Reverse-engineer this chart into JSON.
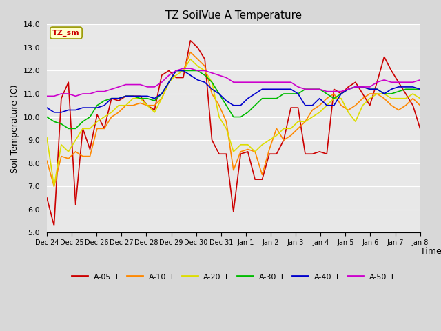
{
  "title": "TZ SoilVue A Temperature",
  "xlabel": "Time",
  "ylabel": "Soil Temperature (C)",
  "ylim": [
    5.0,
    14.0
  ],
  "yticks": [
    5.0,
    6.0,
    7.0,
    8.0,
    9.0,
    10.0,
    11.0,
    12.0,
    13.0,
    14.0
  ],
  "xtick_labels": [
    "Dec 24",
    "Dec 25",
    "Dec 26",
    "Dec 27",
    "Dec 28",
    "Dec 29",
    "Dec 30",
    "Dec 31",
    "Jan 1",
    "Jan 2",
    "Jan 3",
    "Jan 4",
    "Jan 5",
    "Jan 6",
    "Jan 7",
    "Jan 8"
  ],
  "bg_color": "#d8d8d8",
  "plot_bg_color": "#e8e8e8",
  "grid_color": "#ffffff",
  "series_colors": {
    "A-05_T": "#cc0000",
    "A-10_T": "#ff8800",
    "A-20_T": "#dddd00",
    "A-30_T": "#00bb00",
    "A-40_T": "#0000cc",
    "A-50_T": "#cc00cc"
  },
  "annotation_text": "TZ_sm",
  "annotation_color": "#cc0000",
  "annotation_bg": "#ffffcc",
  "annotation_border": "#999900",
  "line_width": 1.2,
  "A05_T": [
    6.5,
    5.3,
    10.8,
    11.5,
    6.2,
    9.5,
    8.6,
    10.1,
    9.5,
    10.8,
    10.7,
    10.9,
    10.9,
    10.9,
    10.5,
    10.3,
    11.8,
    12.0,
    11.7,
    11.7,
    13.3,
    13.0,
    12.5,
    9.0,
    8.4,
    8.4,
    5.9,
    8.4,
    8.5,
    7.3,
    7.3,
    8.4,
    8.4,
    9.0,
    10.4,
    10.4,
    8.4,
    8.4,
    8.5,
    8.4,
    11.2,
    11.0,
    11.3,
    11.5,
    11.0,
    10.5,
    11.5,
    12.6,
    12.0,
    11.5,
    11.0,
    10.5,
    9.5
  ],
  "A10_T": [
    8.1,
    7.0,
    8.3,
    8.2,
    8.5,
    8.3,
    8.3,
    9.5,
    9.5,
    10.0,
    10.2,
    10.5,
    10.5,
    10.6,
    10.5,
    10.5,
    10.8,
    11.5,
    12.0,
    12.0,
    12.8,
    12.5,
    12.2,
    11.0,
    10.5,
    9.8,
    7.7,
    8.5,
    8.6,
    8.5,
    7.5,
    8.6,
    9.5,
    9.0,
    9.2,
    9.5,
    9.8,
    10.3,
    10.5,
    10.8,
    11.0,
    10.5,
    10.3,
    10.5,
    10.8,
    11.0,
    11.0,
    10.8,
    10.5,
    10.3,
    10.5,
    10.8,
    10.5
  ],
  "A20_T": [
    9.1,
    7.0,
    8.8,
    8.5,
    9.0,
    9.5,
    9.5,
    9.8,
    10.0,
    10.2,
    10.5,
    10.5,
    10.8,
    10.8,
    10.5,
    10.2,
    10.8,
    11.5,
    11.8,
    12.0,
    12.5,
    12.2,
    12.0,
    11.5,
    10.0,
    9.5,
    8.5,
    8.8,
    8.8,
    8.5,
    8.8,
    9.0,
    9.2,
    9.5,
    9.5,
    9.8,
    9.8,
    10.0,
    10.2,
    10.5,
    10.8,
    10.8,
    10.2,
    9.8,
    10.5,
    10.8,
    11.0,
    11.0,
    10.8,
    10.8,
    10.8,
    11.0,
    10.8
  ],
  "A30_T": [
    10.0,
    9.8,
    9.7,
    9.5,
    9.5,
    9.8,
    10.0,
    10.5,
    10.7,
    10.8,
    10.8,
    10.9,
    10.9,
    10.8,
    10.8,
    10.7,
    11.0,
    11.5,
    12.0,
    12.0,
    12.0,
    12.0,
    11.8,
    11.5,
    11.0,
    10.5,
    10.0,
    10.0,
    10.2,
    10.5,
    10.8,
    10.8,
    10.8,
    11.0,
    11.0,
    11.0,
    11.2,
    11.2,
    11.2,
    11.0,
    10.8,
    11.0,
    11.2,
    11.3,
    11.3,
    11.2,
    11.2,
    11.0,
    11.0,
    11.1,
    11.2,
    11.2,
    11.2
  ],
  "A40_T": [
    10.4,
    10.2,
    10.2,
    10.3,
    10.3,
    10.4,
    10.4,
    10.4,
    10.5,
    10.8,
    10.8,
    10.9,
    10.9,
    10.9,
    10.9,
    10.8,
    11.0,
    11.5,
    12.0,
    12.0,
    11.8,
    11.6,
    11.5,
    11.2,
    11.0,
    10.7,
    10.5,
    10.5,
    10.8,
    11.0,
    11.2,
    11.2,
    11.2,
    11.2,
    11.2,
    11.0,
    10.5,
    10.5,
    10.8,
    10.5,
    10.5,
    11.0,
    11.2,
    11.3,
    11.3,
    11.2,
    11.2,
    11.0,
    11.2,
    11.3,
    11.3,
    11.3,
    11.2
  ],
  "A50_T": [
    10.9,
    10.9,
    11.0,
    11.0,
    10.9,
    11.0,
    11.0,
    11.1,
    11.1,
    11.2,
    11.3,
    11.4,
    11.4,
    11.4,
    11.3,
    11.3,
    11.5,
    11.8,
    12.0,
    12.1,
    12.1,
    12.0,
    12.0,
    11.9,
    11.8,
    11.7,
    11.5,
    11.5,
    11.5,
    11.5,
    11.5,
    11.5,
    11.5,
    11.5,
    11.5,
    11.3,
    11.2,
    11.2,
    11.2,
    11.1,
    11.1,
    11.1,
    11.2,
    11.3,
    11.3,
    11.3,
    11.5,
    11.6,
    11.5,
    11.5,
    11.5,
    11.5,
    11.6
  ]
}
